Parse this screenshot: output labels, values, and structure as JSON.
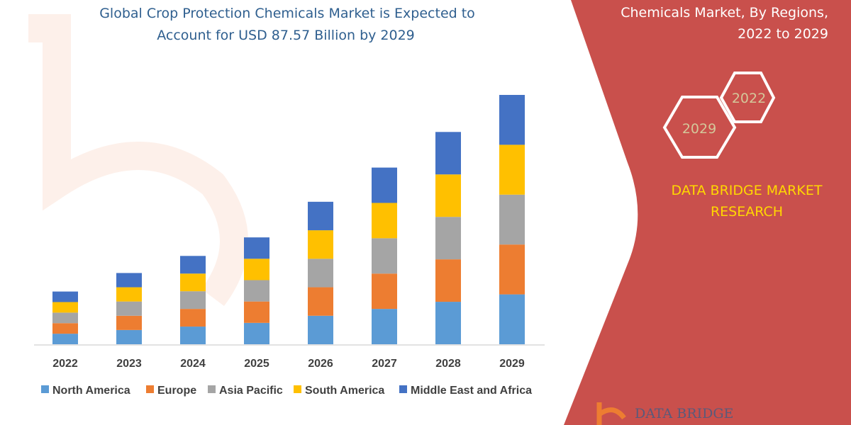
{
  "header": {
    "title_lines": [
      "Global Crop Protection Chemicals Market is Expected to",
      "Account for USD 87.57 Billion by 2029"
    ],
    "side_title_lines": [
      "Chemicals Market, By Regions,",
      "2022 to 2029"
    ]
  },
  "badges": {
    "end_year": "2029",
    "start_year": "2022"
  },
  "brand": {
    "lines": [
      "DATA BRIDGE MARKET",
      "RESEARCH"
    ],
    "logo_text": "DATA BRIDGE"
  },
  "colors": {
    "panel": "#c9504c",
    "North America": "#5b9bd5",
    "Europe": "#ed7d31",
    "Asia Pacific": "#a5a5a5",
    "South America": "#ffc000",
    "Middle East and Africa": "#4472c4"
  },
  "chart_data": {
    "type": "bar",
    "stacked": true,
    "title": "Global Crop Protection Chemicals Market is Expected to Account for USD 87.57 Billion by 2029",
    "categories": [
      "2022",
      "2023",
      "2024",
      "2025",
      "2026",
      "2027",
      "2028",
      "2029"
    ],
    "series": [
      {
        "name": "North America",
        "values": [
          3.7,
          5.0,
          6.2,
          7.5,
          10.0,
          12.4,
          14.9,
          17.5
        ]
      },
      {
        "name": "Europe",
        "values": [
          3.7,
          5.0,
          6.2,
          7.5,
          10.0,
          12.4,
          14.9,
          17.5
        ]
      },
      {
        "name": "Asia Pacific",
        "values": [
          3.7,
          5.0,
          6.2,
          7.5,
          10.0,
          12.4,
          14.9,
          17.5
        ]
      },
      {
        "name": "South America",
        "values": [
          3.7,
          5.0,
          6.2,
          7.5,
          10.0,
          12.4,
          14.9,
          17.5
        ]
      },
      {
        "name": "Middle East and Africa",
        "values": [
          3.7,
          5.0,
          6.2,
          7.5,
          10.0,
          12.4,
          14.9,
          17.5
        ]
      }
    ],
    "ylim": [
      0,
      90
    ],
    "grid": false,
    "y_axis_shown": false,
    "legend": "bottom"
  }
}
